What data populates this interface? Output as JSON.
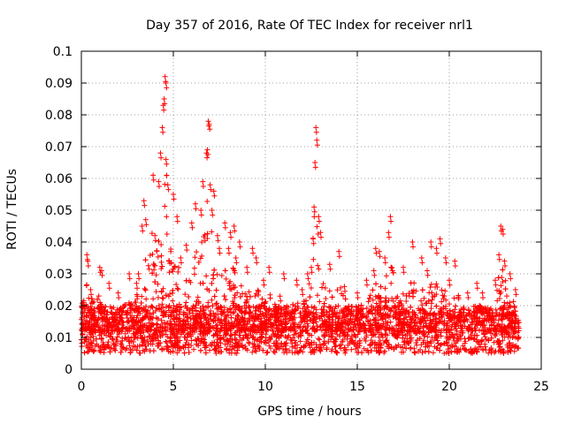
{
  "chart_data": {
    "type": "scatter",
    "title": "Day 357 of 2016, Rate Of TEC Index for receiver nrl1",
    "xlabel": "GPS time / hours",
    "ylabel": "ROTI / TECUs",
    "xlim": [
      0,
      25
    ],
    "ylim": [
      0,
      0.1
    ],
    "xticks": [
      "0",
      "5",
      "10",
      "15",
      "20",
      "25"
    ],
    "yticks": [
      "0",
      "0.01",
      "0.02",
      "0.03",
      "0.04",
      "0.05",
      "0.06",
      "0.07",
      "0.08",
      "0.09",
      "0.1"
    ],
    "grid": true,
    "marker": "+",
    "series_color": "#ff0000",
    "x_span_hours": [
      0,
      23.8
    ],
    "baseline_range": [
      0.005,
      0.02
    ],
    "x": [
      0.1,
      0.3,
      0.35,
      0.5,
      1.0,
      1.1,
      1.5,
      2.0,
      2.6,
      3.0,
      3.1,
      3.3,
      3.4,
      3.5,
      3.9,
      4.0,
      4.2,
      4.3,
      4.4,
      4.45,
      4.5,
      4.55,
      4.6,
      4.6,
      4.7,
      5.0,
      5.2,
      5.4,
      5.7,
      6.0,
      6.2,
      6.5,
      6.6,
      6.8,
      6.85,
      6.9,
      6.95,
      7.0,
      7.1,
      7.2,
      7.4,
      7.5,
      7.8,
      8.0,
      8.1,
      8.3,
      8.4,
      8.6,
      9.0,
      9.3,
      9.5,
      9.9,
      10.2,
      10.8,
      11.0,
      11.7,
      12.0,
      12.3,
      12.5,
      12.6,
      12.65,
      12.7,
      12.75,
      12.8,
      12.9,
      13.0,
      13.5,
      14.0,
      14.3,
      15.0,
      15.5,
      15.9,
      16.0,
      16.2,
      16.5,
      16.7,
      16.8,
      17.5,
      18.0,
      18.5,
      18.8,
      19.0,
      19.3,
      19.5,
      19.8,
      20.0,
      20.3,
      21.0,
      21.5,
      21.8,
      22.5,
      22.7,
      22.8,
      22.9,
      23.0,
      23.3,
      23.6
    ],
    "y": [
      0.021,
      0.036,
      0.034,
      0.025,
      0.032,
      0.031,
      0.027,
      0.024,
      0.03,
      0.027,
      0.03,
      0.045,
      0.053,
      0.047,
      0.061,
      0.042,
      0.059,
      0.068,
      0.076,
      0.083,
      0.085,
      0.092,
      0.09,
      0.066,
      0.058,
      0.055,
      0.048,
      0.035,
      0.039,
      0.046,
      0.052,
      0.05,
      0.059,
      0.068,
      0.069,
      0.078,
      0.077,
      0.058,
      0.05,
      0.056,
      0.042,
      0.038,
      0.046,
      0.038,
      0.043,
      0.045,
      0.035,
      0.04,
      0.032,
      0.038,
      0.035,
      0.028,
      0.032,
      0.023,
      0.03,
      0.028,
      0.025,
      0.03,
      0.032,
      0.041,
      0.051,
      0.065,
      0.076,
      0.072,
      0.048,
      0.043,
      0.033,
      0.037,
      0.026,
      0.024,
      0.028,
      0.031,
      0.038,
      0.037,
      0.035,
      0.043,
      0.048,
      0.032,
      0.04,
      0.035,
      0.031,
      0.04,
      0.038,
      0.041,
      0.035,
      0.028,
      0.034,
      0.024,
      0.027,
      0.024,
      0.028,
      0.036,
      0.045,
      0.044,
      0.034,
      0.03,
      0.025
    ]
  }
}
